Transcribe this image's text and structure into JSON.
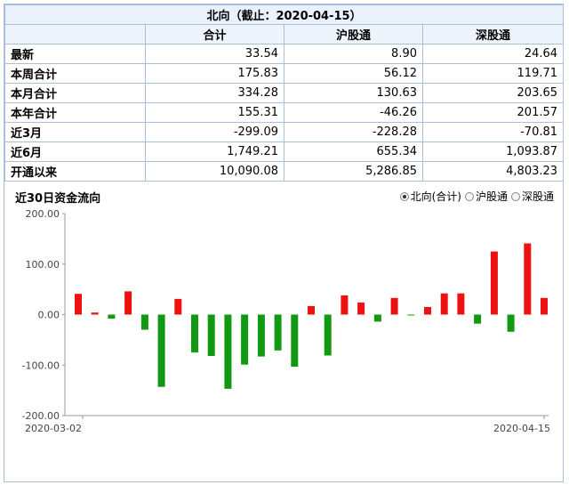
{
  "table": {
    "title": "北向（截止：2020-04-15）",
    "columns": [
      "合计",
      "沪股通",
      "深股通"
    ],
    "rows": [
      {
        "label": "最新",
        "values": [
          "33.54",
          "8.90",
          "24.64"
        ]
      },
      {
        "label": "本周合计",
        "values": [
          "175.83",
          "56.12",
          "119.71"
        ]
      },
      {
        "label": "本月合计",
        "values": [
          "334.28",
          "130.63",
          "203.65"
        ]
      },
      {
        "label": "本年合计",
        "values": [
          "155.31",
          "-46.26",
          "201.57"
        ]
      },
      {
        "label": "近3月",
        "values": [
          "-299.09",
          "-228.28",
          "-70.81"
        ]
      },
      {
        "label": "近6月",
        "values": [
          "1,749.21",
          "655.34",
          "1,093.87"
        ]
      },
      {
        "label": "开通以来",
        "values": [
          "10,090.08",
          "5,286.85",
          "4,803.23"
        ]
      }
    ]
  },
  "chart_section": {
    "title": "近30日资金流向",
    "legend": [
      {
        "label": "北向(合计)",
        "checked": true
      },
      {
        "label": "沪股通",
        "checked": false
      },
      {
        "label": "深股通",
        "checked": false
      }
    ]
  },
  "colors": {
    "positive": "#ee1111",
    "negative": "#119911",
    "border": "#a9c0db",
    "header_bg": "#e8f1fc"
  },
  "chart_data": {
    "type": "bar",
    "title": "近30日资金流向",
    "xlabel": "",
    "ylabel": "",
    "ylim": [
      -200,
      200
    ],
    "yticks": [
      "200.00",
      "100.00",
      "0.00",
      "-100.00",
      "-200.00"
    ],
    "yticks_values": [
      200,
      100,
      0,
      -100,
      -200
    ],
    "x_start_label": "2020-03-02",
    "x_end_label": "2020-04-15",
    "grid": false,
    "values": [
      41,
      4,
      -8,
      46,
      -30,
      -143,
      31,
      -75,
      -82,
      -147,
      -99,
      -83,
      -71,
      -103,
      17,
      -81,
      38,
      24,
      -14,
      33,
      -1,
      15,
      42,
      42,
      -18,
      125,
      -34,
      141,
      33
    ]
  }
}
